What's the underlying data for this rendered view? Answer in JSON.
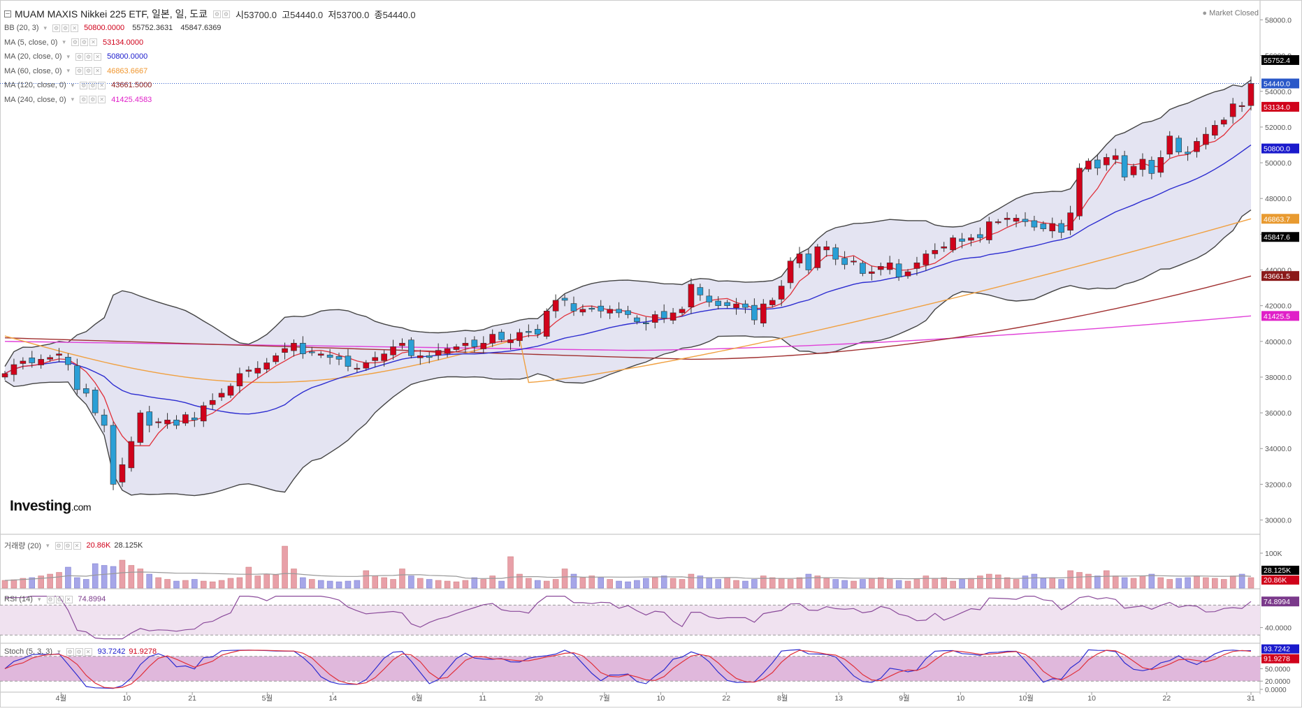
{
  "header": {
    "collapse_icon": "minus-box-icon",
    "title": "MUAM MAXIS Nikkei 225 ETF, 일본, 일, 도쿄",
    "open_label": "시",
    "open_value": "53700.0",
    "high_label": "고",
    "high_value": "54440.0",
    "low_label": "저",
    "low_value": "53700.0",
    "close_label": "종",
    "close_value": "54440.0",
    "market_status": "Market Closed",
    "brand_main": "Investing",
    "brand_suffix": ".com"
  },
  "indicators": [
    {
      "label": "BB (20, 3)",
      "values": [
        "50800.0000",
        "55752.3631",
        "45847.6369"
      ],
      "colors": [
        "#d0021b",
        "#333333",
        "#333333"
      ]
    },
    {
      "label": "MA (5, close, 0)",
      "values": [
        "53134.0000"
      ],
      "colors": [
        "#d0021b"
      ]
    },
    {
      "label": "MA (20, close, 0)",
      "values": [
        "50800.0000"
      ],
      "colors": [
        "#1a1acc"
      ]
    },
    {
      "label": "MA (60, close, 0)",
      "values": [
        "46863.6667"
      ],
      "colors": [
        "#f0962e"
      ]
    },
    {
      "label": "MA (120, close, 0)",
      "values": [
        "43661.5000"
      ],
      "colors": [
        "#8b1a1a"
      ]
    },
    {
      "label": "MA (240, close, 0)",
      "values": [
        "41425.4583"
      ],
      "colors": [
        "#e020c8"
      ]
    }
  ],
  "volume_panel": {
    "label": "거래량 (20)",
    "values": [
      "20.86K",
      "28.125K"
    ],
    "colors": [
      "#d0021b",
      "#333333"
    ]
  },
  "rsi_panel": {
    "label": "RSI (14)",
    "value": "74.8994",
    "color": "#7b3a8b"
  },
  "stoch_panel": {
    "label": "Stoch (5, 3, 3)",
    "values": [
      "93.7242",
      "91.9278"
    ],
    "colors": [
      "#1a1acc",
      "#d0021b"
    ]
  },
  "colors": {
    "up": "#d0021b",
    "down": "#2a9fd6",
    "bb_fill": "#e4e4f2",
    "bb_line": "#444444",
    "ma5": "#e0303a",
    "ma20": "#2c2cd0",
    "ma60": "#f0a040",
    "ma120": "#a03030",
    "ma240": "#e040d8",
    "rsi": "#8a4a9a",
    "rsi_fill": "#f0e2f0",
    "stoch_fill": "#e0b8dc"
  },
  "chart_data": [
    {
      "type": "candlestick",
      "title": "MUAM MAXIS Nikkei 225 ETF, 일본, 일, 도쿄",
      "x_tick_labels": [
        "4월",
        "10",
        "21",
        "5월",
        "14",
        "6월",
        "11",
        "20",
        "7월",
        "10",
        "22",
        "8월",
        "13",
        "9월",
        "10",
        "10월",
        "10",
        "22",
        "31"
      ],
      "y_tick_labels": [
        "58000.0",
        "56000.0",
        "54000.0",
        "52000.0",
        "50000.0",
        "48000.0",
        "46000.0",
        "44000.0",
        "42000.0",
        "40000.0",
        "38000.0",
        "36000.0",
        "34000.0",
        "32000.0",
        "30000.0"
      ],
      "ylim": [
        29200,
        58800
      ],
      "price_markers": [
        {
          "value": 55752.4,
          "label": "55752.4",
          "color": "#000000"
        },
        {
          "value": 54440.0,
          "label": "54440.0",
          "color": "#2a58c8"
        },
        {
          "value": 53134.0,
          "label": "53134.0",
          "color": "#d0021b"
        },
        {
          "value": 50800.0,
          "label": "50800.0",
          "color": "#1a1acc"
        },
        {
          "value": 46863.7,
          "label": "46863.7",
          "color": "#e89a30"
        },
        {
          "value": 45847.6,
          "label": "45847.6",
          "color": "#000000"
        },
        {
          "value": 43661.5,
          "label": "43661.5",
          "color": "#8b1a1a"
        },
        {
          "value": 41425.5,
          "label": "41425.5",
          "color": "#e020c8"
        }
      ],
      "last_close": 54440.0,
      "closes": [
        38200,
        38700,
        38900,
        38800,
        39000,
        39100,
        39300,
        38700,
        37300,
        37100,
        36000,
        35300,
        32000,
        33100,
        34400,
        36000,
        35300,
        35500,
        35600,
        35300,
        35900,
        35600,
        36400,
        36700,
        37100,
        37500,
        38200,
        38400,
        38500,
        38800,
        39200,
        39600,
        39900,
        39300,
        39400,
        39300,
        39100,
        39000,
        38600,
        38500,
        38800,
        39100,
        39300,
        39700,
        39900,
        39200,
        39200,
        39100,
        39500,
        39600,
        39700,
        39900,
        39700,
        39900,
        40400,
        40100,
        40100,
        40500,
        40500,
        40400,
        41700,
        42300,
        42300,
        41700,
        41800,
        41800,
        41700,
        41800,
        41600,
        41500,
        41100,
        41000,
        41500,
        41300,
        41600,
        41800,
        43200,
        42600,
        42200,
        42000,
        42000,
        42100,
        41900,
        41200,
        42100,
        42300,
        43100,
        44500,
        44900,
        44000,
        45300,
        45300,
        44600,
        44300,
        44500,
        43800,
        43900,
        44200,
        44400,
        43600,
        43900,
        44400,
        44900,
        45100,
        45300,
        45800,
        45600,
        45800,
        45800,
        46700,
        46700,
        46900,
        46900,
        46700,
        46400,
        46300,
        46600,
        46100,
        47200,
        49700,
        50100,
        49700,
        50300,
        50400,
        49200,
        49800,
        50200,
        49400,
        50300,
        51500,
        50600,
        50500,
        51200,
        51600,
        52100,
        52400,
        53300,
        53200,
        54440
      ],
      "series": [
        {
          "name": "BB (20, 3)",
          "upper": 55752.3631,
          "middle": 50800.0,
          "lower": 45847.6369
        },
        {
          "name": "MA (5, close, 0)",
          "last": 53134.0
        },
        {
          "name": "MA (20, close, 0)",
          "last": 50800.0
        },
        {
          "name": "MA (60, close, 0)",
          "last": 46863.6667
        },
        {
          "name": "MA (120, close, 0)",
          "last": 43661.5
        },
        {
          "name": "MA (240, close, 0)",
          "last": 41425.4583
        }
      ]
    },
    {
      "type": "bar",
      "title": "거래량 (20)",
      "y_tick_labels": [
        "100K"
      ],
      "ylim": [
        0,
        140
      ],
      "values": [
        22,
        24,
        28,
        30,
        35,
        40,
        45,
        60,
        30,
        25,
        70,
        65,
        62,
        80,
        65,
        55,
        40,
        30,
        25,
        20,
        22,
        25,
        20,
        18,
        22,
        28,
        30,
        60,
        35,
        40,
        38,
        120,
        55,
        30,
        25,
        22,
        20,
        18,
        20,
        22,
        50,
        35,
        30,
        25,
        55,
        35,
        28,
        25,
        22,
        20,
        18,
        22,
        30,
        25,
        35,
        20,
        90,
        40,
        28,
        22,
        20,
        25,
        55,
        40,
        30,
        35,
        30,
        25,
        20,
        18,
        22,
        28,
        30,
        35,
        28,
        25,
        40,
        35,
        30,
        25,
        30,
        22,
        20,
        25,
        35,
        30,
        28,
        25,
        30,
        40,
        35,
        28,
        25,
        22,
        20,
        25,
        28,
        30,
        25,
        22,
        20,
        25,
        35,
        28,
        30,
        20,
        25,
        28,
        35,
        40,
        38,
        30,
        25,
        35,
        40,
        28,
        30,
        25,
        50,
        45,
        40,
        35,
        50,
        35,
        30,
        28,
        35,
        40,
        30,
        25,
        28,
        30,
        35,
        30,
        28,
        25,
        35,
        40,
        30
      ],
      "last_volume": "20.86K",
      "volume_ma": "28.125K"
    },
    {
      "type": "line",
      "title": "RSI (14)",
      "y_tick_labels": [
        "40.0000"
      ],
      "ylim": [
        20,
        90
      ],
      "bands": [
        30,
        70
      ],
      "last": 74.8994
    },
    {
      "type": "line",
      "title": "Stoch (5, 3, 3)",
      "y_tick_labels": [
        "80.0000",
        "50.0000",
        "20.0000",
        "0.0000"
      ],
      "ylim": [
        -5,
        110
      ],
      "bands": [
        20,
        80
      ],
      "series": [
        {
          "name": "%K",
          "last": 93.7242
        },
        {
          "name": "%D",
          "last": 91.9278
        }
      ]
    }
  ]
}
